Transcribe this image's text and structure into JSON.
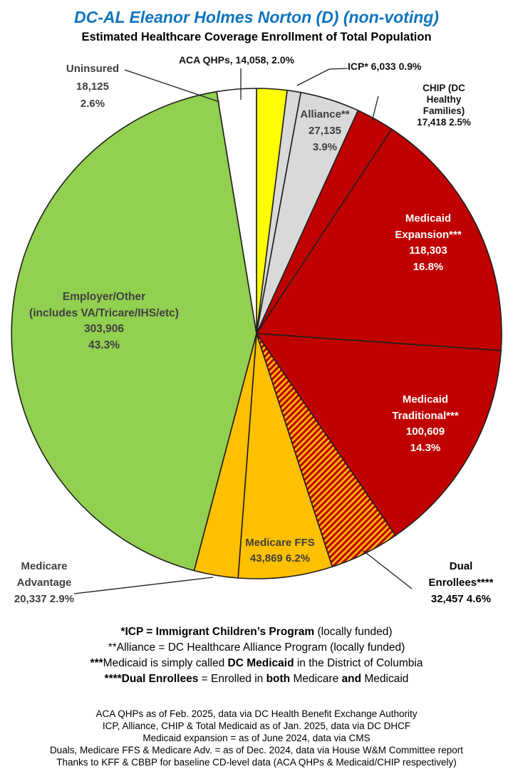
{
  "colors": {
    "title_blue": "#0F74BE",
    "dark_red": "#C00000",
    "gold": "#FFC000",
    "yellow": "#FFFF00",
    "light_gray": "#D9D9D9",
    "green": "#92D050",
    "white": "#FFFFFF",
    "label_gray": "#3F3F3F"
  },
  "chart_data": {
    "type": "pie",
    "title": "DC-AL Eleanor Holmes Norton (D) (non-voting)",
    "subtitle": "Estimated Healthcare Coverage Enrollment of Total Population",
    "start_angle_deg": -90,
    "direction": "clockwise",
    "hatch_colors": {
      "bg": "#C00000",
      "stripe": "#FFC000"
    },
    "slices": [
      {
        "id": "aca-qhps",
        "name": "ACA QHPs",
        "value": 14058,
        "display_value": "14,058",
        "pct": 2.0,
        "color": "#FFFF00",
        "hatch": false,
        "label": [
          "ACA QHPs, 14,058, 2.0%"
        ]
      },
      {
        "id": "icp",
        "name": "ICP*",
        "value": 6033,
        "display_value": "6,033",
        "pct": 0.9,
        "color": "#D9D9D9",
        "hatch": false,
        "label": [
          "ICP* 6,033 0.9%"
        ]
      },
      {
        "id": "alliance",
        "name": "Alliance**",
        "value": 27135,
        "display_value": "27,135",
        "pct": 3.9,
        "color": "#D9D9D9",
        "hatch": false,
        "label": [
          "Alliance**",
          "27,135",
          "3.9%"
        ]
      },
      {
        "id": "chip",
        "name": "CHIP (DC Healthy Families)",
        "value": 17418,
        "display_value": "17,418",
        "pct": 2.5,
        "color": "#C00000",
        "hatch": false,
        "label": [
          "CHIP (DC Healthy Families)",
          "17,418 2.5%"
        ]
      },
      {
        "id": "medicaid-expansion",
        "name": "Medicaid Expansion***",
        "value": 118303,
        "display_value": "118,303",
        "pct": 16.8,
        "color": "#C00000",
        "hatch": false,
        "label": [
          "Medicaid",
          "Expansion***",
          "118,303",
          "16.8%"
        ]
      },
      {
        "id": "medicaid-traditional",
        "name": "Medicaid Traditional***",
        "value": 100609,
        "display_value": "100,609",
        "pct": 14.3,
        "color": "#C00000",
        "hatch": false,
        "label": [
          "Medicaid",
          "Traditional***",
          "100,609",
          "14.3%"
        ]
      },
      {
        "id": "dual-enrollees",
        "name": "Dual Enrollees****",
        "value": 32457,
        "display_value": "32,457",
        "pct": 4.6,
        "color": "#C00000",
        "hatch": true,
        "label": [
          "Dual",
          "Enrollees****",
          "32,457 4.6%"
        ]
      },
      {
        "id": "medicare-ffs",
        "name": "Medicare FFS",
        "value": 43869,
        "display_value": "43,869",
        "pct": 6.2,
        "color": "#FFC000",
        "hatch": false,
        "label": [
          "Medicare FFS",
          "43,869 6.2%"
        ]
      },
      {
        "id": "medicare-advantage",
        "name": "Medicare Advantage",
        "value": 20337,
        "display_value": "20,337",
        "pct": 2.9,
        "color": "#FFC000",
        "hatch": false,
        "label": [
          "Medicare",
          "Advantage",
          "20,337 2.9%"
        ]
      },
      {
        "id": "employer-other",
        "name": "Employer/Other (includes VA/Tricare/IHS/etc)",
        "value": 303906,
        "display_value": "303,906",
        "pct": 43.3,
        "color": "#92D050",
        "hatch": false,
        "label": [
          "Employer/Other",
          "(includes VA/Tricare/IHS/etc)",
          "303,906",
          "43.3%"
        ]
      },
      {
        "id": "uninsured",
        "name": "Uninsured",
        "value": 18125,
        "display_value": "18,125",
        "pct": 2.6,
        "color": "#FFFFFF",
        "hatch": false,
        "label": [
          "Uninsured",
          "18,125",
          "2.6%"
        ]
      }
    ]
  },
  "footnotes": {
    "line1_bold": "*ICP = Immigrant Children’s Program",
    "line1_rest": " (locally funded)",
    "line2": "**Alliance = DC Healthcare Alliance Program (locally funded)",
    "line3_bold1": "***",
    "line3_pre": "Medicaid is simply called ",
    "line3_bold2": "DC Medicaid",
    "line3_post": " in the District of Columbia",
    "line4_bold1": "****Dual Enrollees",
    "line4_reg1": " = Enrolled in ",
    "line4_bold2": "both",
    "line4_reg2": " Medicare ",
    "line4_bold3": "and",
    "line4_reg3": " Medicaid"
  },
  "sources": [
    "ACA QHPs as of Feb. 2025, data via DC Health Benefit Exchange Authority",
    "ICP, Alliance, CHIP & Total Medicaid as of Jan. 2025, data via DC DHCF",
    "Medicaid expansion = as of June 2024, data via CMS",
    "Duals, Medicare FFS & Medicare Adv. = as of Dec. 2024, data via House W&M Committee report",
    "Thanks to KFF & CBBP for baseline CD-level data (ACA QHPs & Medicaid/CHIP respectively)"
  ]
}
